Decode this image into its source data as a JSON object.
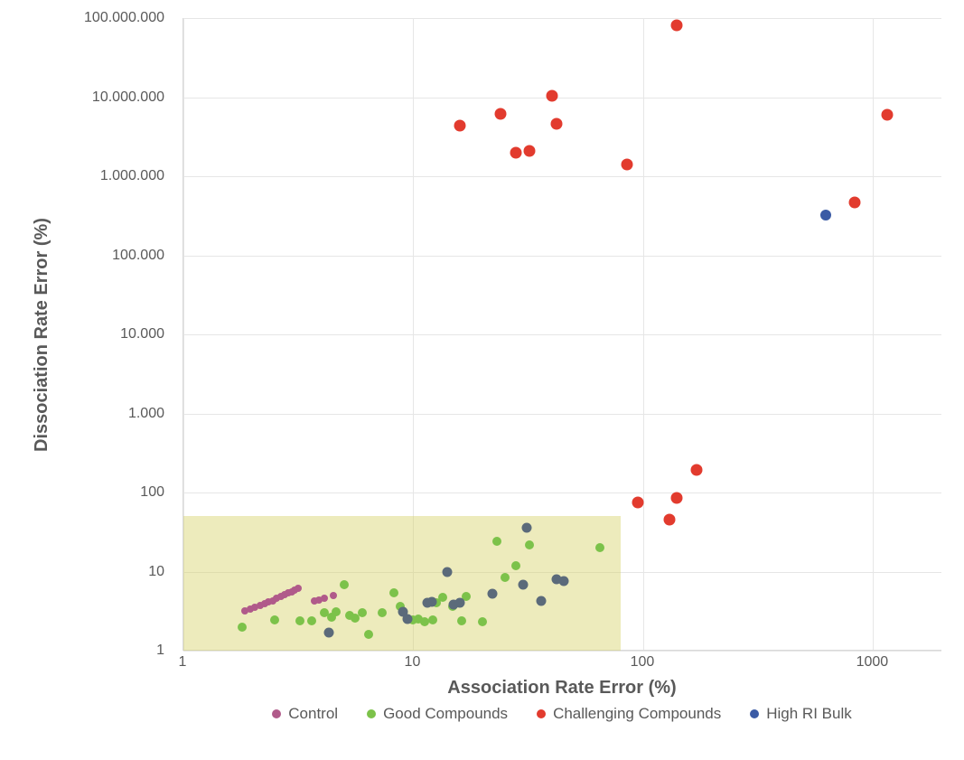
{
  "chart": {
    "type": "scatter",
    "xlabel": "Association Rate Error (%)",
    "ylabel": "Dissociation Rate Error (%)",
    "label_fontsize": 20,
    "tick_fontsize": 16,
    "xscale": "log",
    "yscale": "log",
    "xlim": [
      1,
      2000
    ],
    "ylim": [
      1,
      100000000
    ],
    "x_ticks": [
      1,
      10,
      100,
      1000
    ],
    "x_tick_labels": [
      "1",
      "10",
      "100",
      "1000"
    ],
    "y_ticks": [
      1,
      10,
      100,
      1000,
      10000,
      100000,
      1000000,
      10000000,
      100000000
    ],
    "y_tick_labels": [
      "1",
      "10",
      "100",
      "1.000",
      "10.000",
      "100.000",
      "1.000.000",
      "10.000.000",
      "100.000.000"
    ],
    "background_color": "#ffffff",
    "grid_color": "#e6e6e6",
    "axis_color": "#d9d9d9",
    "text_color": "#595959",
    "highlight_region": {
      "x": [
        1,
        80
      ],
      "y": [
        1,
        50
      ],
      "fill": "#d6d36b",
      "opacity": 0.45
    },
    "series": [
      {
        "name": "Control",
        "label": "Control",
        "color": "#b05a8a",
        "marker_size": 8,
        "points": [
          [
            1.85,
            3.2
          ],
          [
            1.95,
            3.35
          ],
          [
            2.05,
            3.5
          ],
          [
            2.15,
            3.7
          ],
          [
            2.25,
            3.9
          ],
          [
            2.35,
            4.1
          ],
          [
            2.45,
            4.3
          ],
          [
            2.55,
            4.55
          ],
          [
            2.65,
            4.8
          ],
          [
            2.75,
            5.1
          ],
          [
            2.85,
            5.35
          ],
          [
            2.95,
            5.6
          ],
          [
            3.05,
            5.9
          ],
          [
            3.15,
            6.2
          ],
          [
            3.7,
            4.3
          ],
          [
            3.9,
            4.4
          ],
          [
            4.1,
            4.6
          ],
          [
            4.5,
            5.0
          ]
        ]
      },
      {
        "name": "Good Compounds",
        "label": "Good Compounds",
        "color": "#7cc24a",
        "marker_size": 10,
        "points": [
          [
            1.8,
            2.0
          ],
          [
            2.5,
            2.45
          ],
          [
            3.2,
            2.4
          ],
          [
            3.6,
            2.4
          ],
          [
            4.1,
            3.0
          ],
          [
            4.4,
            2.65
          ],
          [
            4.6,
            3.1
          ],
          [
            5.0,
            6.8
          ],
          [
            5.3,
            2.8
          ],
          [
            5.6,
            2.6
          ],
          [
            6.0,
            3.0
          ],
          [
            6.4,
            1.6
          ],
          [
            7.3,
            3.0
          ],
          [
            8.2,
            5.4
          ],
          [
            8.8,
            3.6
          ],
          [
            10.0,
            2.45
          ],
          [
            10.5,
            2.5
          ],
          [
            11.2,
            2.3
          ],
          [
            12.2,
            2.45
          ],
          [
            12.6,
            4.0
          ],
          [
            13.4,
            4.7
          ],
          [
            14.8,
            3.6
          ],
          [
            16.2,
            2.4
          ],
          [
            17.0,
            4.8
          ],
          [
            20.0,
            2.3
          ],
          [
            23,
            24
          ],
          [
            25,
            8.5
          ],
          [
            28,
            12
          ],
          [
            32,
            22
          ],
          [
            65,
            20
          ]
        ]
      },
      {
        "name": "GoodDark",
        "label": "_hidden",
        "color": "#5b6a7a",
        "marker_size": 11,
        "points": [
          [
            4.3,
            1.7
          ],
          [
            9.0,
            3.1
          ],
          [
            9.4,
            2.5
          ],
          [
            11.5,
            4.0
          ],
          [
            12.0,
            4.1
          ],
          [
            14.0,
            10.0
          ],
          [
            15.0,
            3.8
          ],
          [
            16.0,
            4.0
          ],
          [
            22,
            5.3
          ],
          [
            30,
            6.8
          ],
          [
            31,
            36
          ],
          [
            36,
            4.3
          ],
          [
            45,
            7.5
          ],
          [
            42,
            8.0
          ]
        ]
      },
      {
        "name": "Challenging Compounds",
        "label": "Challenging Compounds",
        "color": "#e23b2e",
        "marker_size": 13,
        "points": [
          [
            16,
            4400000
          ],
          [
            24,
            6200000
          ],
          [
            28,
            2000000
          ],
          [
            32,
            2100000
          ],
          [
            40,
            10500000
          ],
          [
            42,
            4600000
          ],
          [
            85,
            1400000
          ],
          [
            140,
            82000000
          ],
          [
            95,
            75
          ],
          [
            130,
            45
          ],
          [
            140,
            85
          ],
          [
            170,
            195
          ],
          [
            830,
            470000
          ],
          [
            1150,
            6000000
          ]
        ]
      },
      {
        "name": "High RI Bulk",
        "label": "High RI Bulk",
        "color": "#3b5ba5",
        "marker_size": 12,
        "points": [
          [
            620,
            320000
          ]
        ]
      }
    ],
    "legend": {
      "position": "bottom",
      "items": [
        "Control",
        "Good Compounds",
        "Challenging Compounds",
        "High RI Bulk"
      ]
    }
  }
}
